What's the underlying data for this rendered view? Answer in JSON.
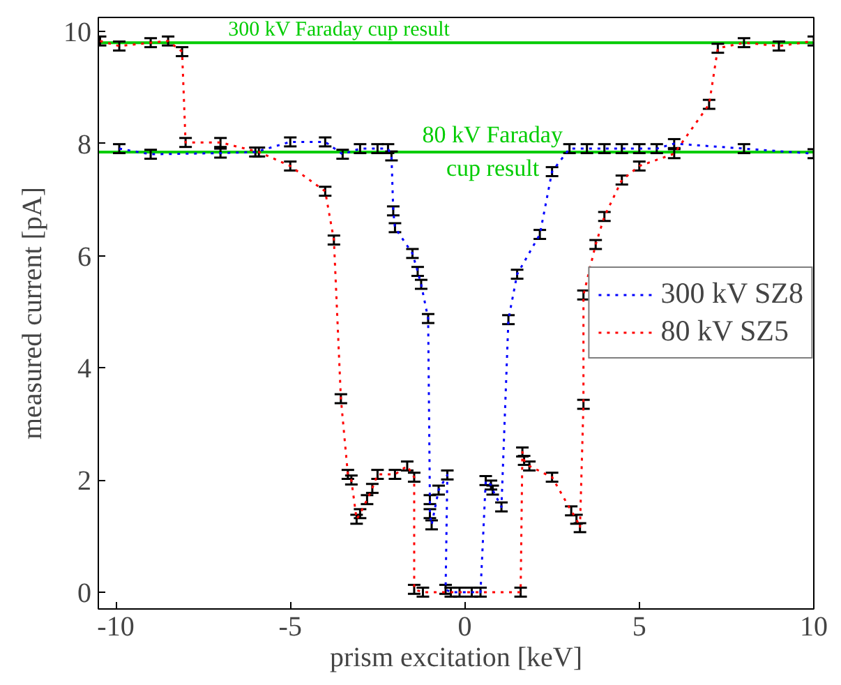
{
  "chart_data": {
    "type": "line",
    "xlabel": "prism excitation [keV]",
    "ylabel": "measured current [pA]",
    "xlim": [
      -10.5,
      10
    ],
    "ylim": [
      -0.3,
      10.25
    ],
    "xticks": [
      -10,
      -5,
      0,
      5,
      10
    ],
    "yticks": [
      0,
      2,
      4,
      6,
      8,
      10
    ],
    "grid": false,
    "legend": "right",
    "marker": "none",
    "line_style": "dotted",
    "ref_lines": [
      {
        "axis": "y",
        "value": 9.8,
        "label": "300 kV Faraday cup result",
        "color": "#00cc00"
      },
      {
        "axis": "y",
        "value": 7.85,
        "label": "80 kV Faraday\ncup result",
        "color": "#00cc00"
      }
    ],
    "series": [
      {
        "name": "300 kV SZ8",
        "color": "#0000ff",
        "x": [
          -9.9,
          -9.0,
          -7.0,
          -6.0,
          -5.0,
          -4.0,
          -3.5,
          -3.0,
          -2.5,
          -2.2,
          -2.1,
          -2.05,
          -2.0,
          -1.5,
          -1.35,
          -1.25,
          -1.05,
          -1.0,
          -1.0,
          -0.95,
          -0.75,
          -0.5,
          -0.55,
          -0.4,
          -0.15,
          0.2,
          0.45,
          0.6,
          0.75,
          0.8,
          1.05,
          1.25,
          1.5,
          2.15,
          2.5,
          3.0,
          3.5,
          4.0,
          4.5,
          5.0,
          5.5,
          6.0,
          8.0,
          10.0
        ],
        "values": [
          7.91,
          7.81,
          7.83,
          7.85,
          8.03,
          8.03,
          7.81,
          7.91,
          7.91,
          7.91,
          7.78,
          6.8,
          6.5,
          6.04,
          5.72,
          5.49,
          4.88,
          1.65,
          1.4,
          1.2,
          1.82,
          2.09,
          0.05,
          0,
          0,
          0,
          0,
          1.99,
          1.91,
          1.82,
          1.52,
          4.86,
          5.67,
          6.38,
          7.5,
          7.91,
          7.91,
          7.91,
          7.91,
          7.91,
          7.91,
          8.0,
          7.91,
          7.82
        ],
        "errors": [
          0.08,
          0.08,
          0.08,
          0.08,
          0.08,
          0.08,
          0.08,
          0.08,
          0.08,
          0.08,
          0.08,
          0.08,
          0.08,
          0.08,
          0.08,
          0.08,
          0.08,
          0.08,
          0.08,
          0.08,
          0.08,
          0.08,
          0.08,
          0.08,
          0.08,
          0.08,
          0.08,
          0.08,
          0.08,
          0.08,
          0.08,
          0.08,
          0.08,
          0.08,
          0.08,
          0.08,
          0.08,
          0.08,
          0.08,
          0.08,
          0.08,
          0.08,
          0.08,
          0.08
        ]
      },
      {
        "name": "80 kV SZ5",
        "color": "#ff0000",
        "x": [
          -10.45,
          -9.9,
          -9.0,
          -8.5,
          -8.1,
          -8.0,
          -7.0,
          -5.9,
          -5.0,
          -4.0,
          -3.75,
          -3.55,
          -3.35,
          -3.25,
          -3.1,
          -3.0,
          -2.8,
          -2.65,
          -2.5,
          -2.0,
          -1.65,
          -1.45,
          -1.45,
          -1.2,
          1.6,
          1.65,
          1.7,
          1.85,
          2.5,
          3.05,
          3.2,
          3.3,
          3.4,
          3.4,
          3.75,
          4.0,
          4.5,
          5.0,
          6.0,
          7.0,
          7.25,
          8.0,
          9.0,
          10.0
        ],
        "values": [
          9.83,
          9.74,
          9.8,
          9.83,
          9.64,
          8.02,
          8.02,
          7.85,
          7.6,
          7.15,
          6.28,
          3.45,
          2.1,
          2.0,
          1.3,
          1.4,
          1.65,
          1.85,
          2.1,
          2.1,
          2.25,
          2.05,
          0.05,
          0,
          0,
          2.5,
          2.35,
          2.25,
          2.05,
          1.45,
          1.3,
          1.15,
          3.35,
          5.3,
          6.2,
          6.7,
          7.35,
          7.6,
          7.82,
          8.7,
          9.7,
          9.8,
          9.74,
          9.83
        ],
        "errors": [
          0.08,
          0.08,
          0.08,
          0.08,
          0.08,
          0.08,
          0.08,
          0.08,
          0.08,
          0.08,
          0.08,
          0.08,
          0.08,
          0.08,
          0.08,
          0.08,
          0.08,
          0.08,
          0.08,
          0.08,
          0.08,
          0.08,
          0.08,
          0.08,
          0.08,
          0.08,
          0.08,
          0.08,
          0.08,
          0.08,
          0.08,
          0.08,
          0.08,
          0.08,
          0.08,
          0.08,
          0.08,
          0.08,
          0.08,
          0.08,
          0.08,
          0.08,
          0.08,
          0.08
        ]
      }
    ]
  }
}
